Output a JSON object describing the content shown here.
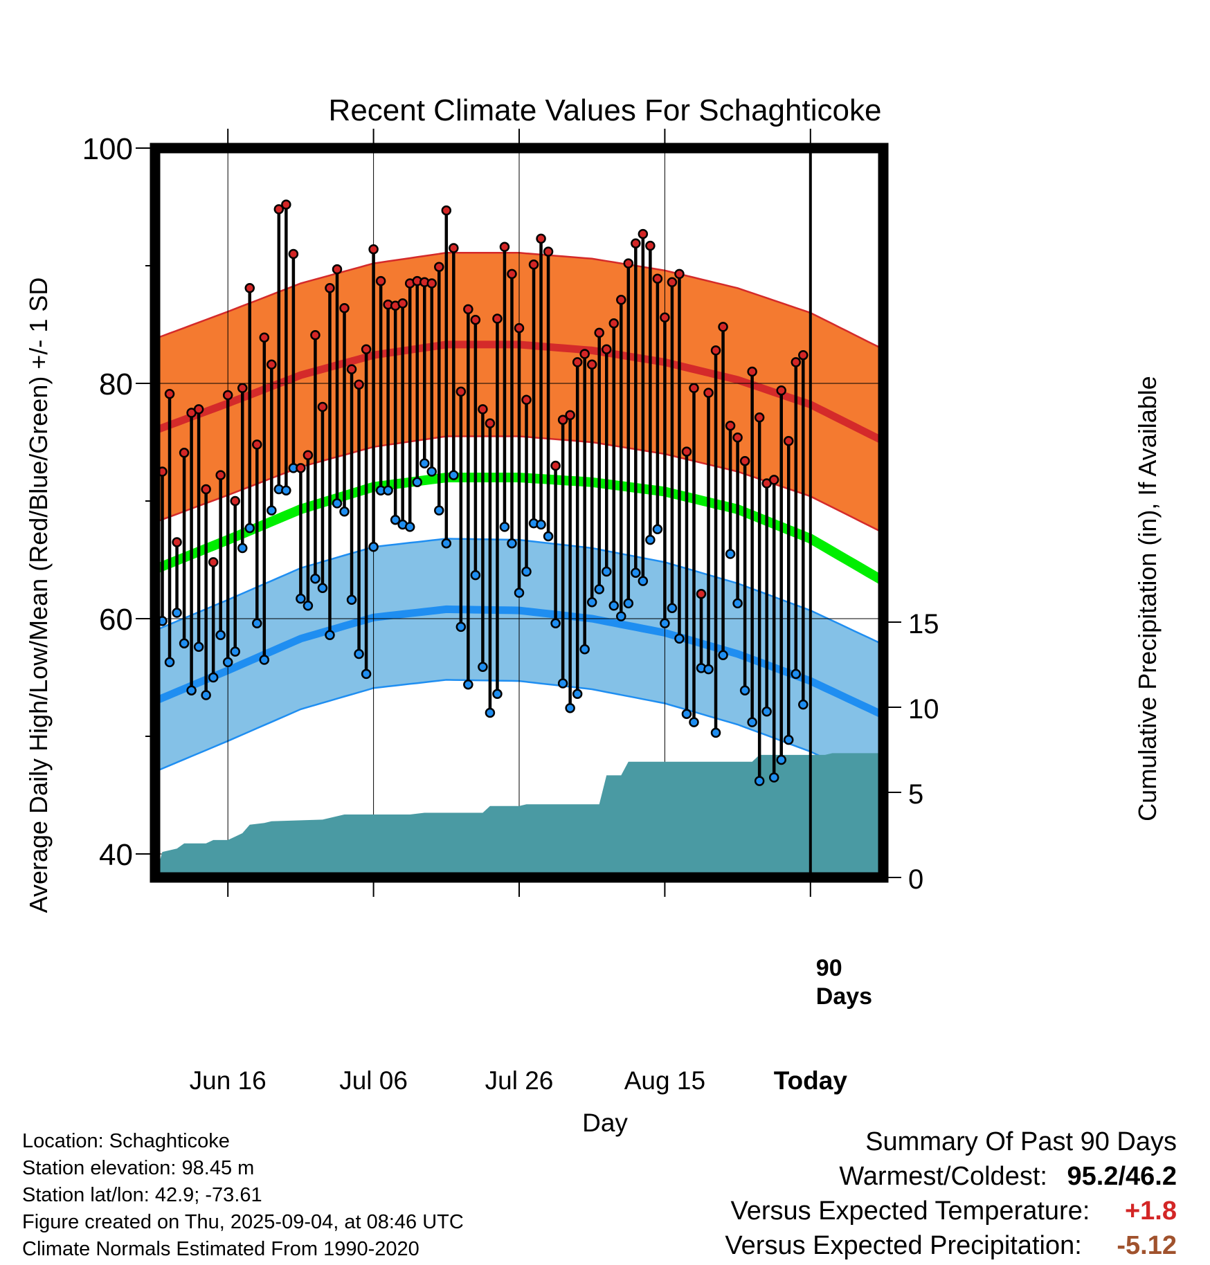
{
  "chart_data": {
    "type": "line",
    "title": "Recent Climate Values For Schaghticoke",
    "xlabel": "Day",
    "ylabel": "Average Daily High/Low/Mean (Red/Blue/Green) +/- 1 SD",
    "y2label": "Cumulative Precipitation (in), If Available",
    "ylim": [
      38,
      100
    ],
    "y2lim": [
      0,
      15
    ],
    "yticks": [
      40,
      60,
      80,
      100
    ],
    "y2ticks": [
      0,
      5,
      10,
      15
    ],
    "xlim": [
      -10,
      90
    ],
    "x_tick_positions": [
      0,
      20,
      40,
      60,
      80
    ],
    "x_tick_labels": [
      "Jun 16",
      "Jul 06",
      "Jul 26",
      "Aug 15",
      "Today"
    ],
    "today_marker_label": [
      "90",
      "Days"
    ],
    "start_date": "2025-06-06",
    "daily_high": [
      78.9,
      72.5,
      79.1,
      66.5,
      74.1,
      77.5,
      77.8,
      71.0,
      64.8,
      72.2,
      79.0,
      70.0,
      79.6,
      88.1,
      74.8,
      83.9,
      81.6,
      94.8,
      95.2,
      91.0,
      72.8,
      73.9,
      84.1,
      78.0,
      88.1,
      89.7,
      86.4,
      81.2,
      79.9,
      82.9,
      91.4,
      88.7,
      86.7,
      86.6,
      86.8,
      88.5,
      88.7,
      88.6,
      88.5,
      89.9,
      94.7,
      91.5,
      79.3,
      86.3,
      85.4,
      77.8,
      76.6,
      85.5,
      91.6,
      89.3,
      84.7,
      78.6,
      90.1,
      92.3,
      91.2,
      73.0,
      76.9,
      77.3,
      81.8,
      82.5,
      81.6,
      84.3,
      82.9,
      85.1,
      87.1,
      90.2,
      91.9,
      92.7,
      91.7,
      88.9,
      85.6,
      88.6,
      89.3,
      74.2,
      79.6,
      62.1,
      79.2,
      82.8,
      84.8,
      76.4,
      75.4,
      73.4,
      81.0,
      77.1,
      71.5,
      71.8,
      79.4,
      75.1,
      81.8,
      82.4
    ],
    "daily_low": [
      64.8,
      59.8,
      56.3,
      60.5,
      57.9,
      53.9,
      57.6,
      53.5,
      55.0,
      58.6,
      56.3,
      57.2,
      66.0,
      67.7,
      59.6,
      56.5,
      69.2,
      71.0,
      70.9,
      72.8,
      61.7,
      61.1,
      63.4,
      62.6,
      58.6,
      69.8,
      69.1,
      61.6,
      57.0,
      55.3,
      66.1,
      70.9,
      70.9,
      68.4,
      68.0,
      67.8,
      71.6,
      73.2,
      72.5,
      69.2,
      66.4,
      72.2,
      59.3,
      54.4,
      63.7,
      55.9,
      52.0,
      53.6,
      67.8,
      66.4,
      62.2,
      64.0,
      68.1,
      68.0,
      67.0,
      59.6,
      54.5,
      52.4,
      53.6,
      57.4,
      61.4,
      62.5,
      64.0,
      61.1,
      60.2,
      61.3,
      63.9,
      63.2,
      66.7,
      67.6,
      59.6,
      60.9,
      58.3,
      51.9,
      51.2,
      55.8,
      55.7,
      50.3,
      56.9,
      65.5,
      61.3,
      53.9,
      51.2,
      46.2,
      52.1,
      46.5,
      48.0,
      49.7,
      55.3,
      52.7
    ],
    "normal_high": [
      {
        "day": -10,
        "value": 76.0
      },
      {
        "day": 0,
        "value": 78.3
      },
      {
        "day": 10,
        "value": 80.7
      },
      {
        "day": 20,
        "value": 82.4
      },
      {
        "day": 30,
        "value": 83.3
      },
      {
        "day": 40,
        "value": 83.3
      },
      {
        "day": 50,
        "value": 82.8
      },
      {
        "day": 60,
        "value": 81.8
      },
      {
        "day": 70,
        "value": 80.3
      },
      {
        "day": 80,
        "value": 78.2
      },
      {
        "day": 90,
        "value": 75.1
      }
    ],
    "normal_high_sd": 7.8,
    "normal_mean": [
      {
        "day": -10,
        "value": 64.2
      },
      {
        "day": 0,
        "value": 66.7
      },
      {
        "day": 10,
        "value": 69.3
      },
      {
        "day": 20,
        "value": 71.2
      },
      {
        "day": 30,
        "value": 72.0
      },
      {
        "day": 40,
        "value": 72.0
      },
      {
        "day": 50,
        "value": 71.6
      },
      {
        "day": 60,
        "value": 70.8
      },
      {
        "day": 70,
        "value": 69.3
      },
      {
        "day": 80,
        "value": 66.8
      },
      {
        "day": 90,
        "value": 63.2
      }
    ],
    "normal_low": [
      {
        "day": -10,
        "value": 53.0
      },
      {
        "day": 0,
        "value": 55.6
      },
      {
        "day": 10,
        "value": 58.3
      },
      {
        "day": 20,
        "value": 60.1
      },
      {
        "day": 30,
        "value": 60.8
      },
      {
        "day": 40,
        "value": 60.7
      },
      {
        "day": 50,
        "value": 60.0
      },
      {
        "day": 60,
        "value": 58.8
      },
      {
        "day": 70,
        "value": 57.0
      },
      {
        "day": 80,
        "value": 54.7
      },
      {
        "day": 90,
        "value": 51.8
      }
    ],
    "normal_low_sd": 6.0,
    "cumulative_precip": [
      {
        "day": -10,
        "value": 0.0
      },
      {
        "day": -9,
        "value": 1.5
      },
      {
        "day": -7,
        "value": 1.7
      },
      {
        "day": -6,
        "value": 2.0
      },
      {
        "day": -3,
        "value": 2.0
      },
      {
        "day": -2,
        "value": 2.2
      },
      {
        "day": 0,
        "value": 2.2
      },
      {
        "day": 1,
        "value": 2.4
      },
      {
        "day": 2,
        "value": 2.6
      },
      {
        "day": 3,
        "value": 3.1
      },
      {
        "day": 5,
        "value": 3.2
      },
      {
        "day": 6,
        "value": 3.3
      },
      {
        "day": 13,
        "value": 3.4
      },
      {
        "day": 16,
        "value": 3.7
      },
      {
        "day": 25,
        "value": 3.7
      },
      {
        "day": 27,
        "value": 3.8
      },
      {
        "day": 35,
        "value": 3.8
      },
      {
        "day": 36,
        "value": 4.2
      },
      {
        "day": 40,
        "value": 4.2
      },
      {
        "day": 41,
        "value": 4.3
      },
      {
        "day": 51,
        "value": 4.3
      },
      {
        "day": 52,
        "value": 6.0
      },
      {
        "day": 54,
        "value": 6.0
      },
      {
        "day": 55,
        "value": 6.8
      },
      {
        "day": 64,
        "value": 6.8
      },
      {
        "day": 70,
        "value": 6.8
      },
      {
        "day": 72,
        "value": 6.8
      },
      {
        "day": 73,
        "value": 7.2
      },
      {
        "day": 82,
        "value": 7.2
      },
      {
        "day": 83,
        "value": 7.3
      },
      {
        "day": 90,
        "value": 7.3
      }
    ],
    "colors": {
      "high_line": "#d42a2a",
      "high_band": "#f47a30",
      "high_dot": "#d32626",
      "low_line": "#1f8ef1",
      "low_band": "#84c1e7",
      "low_dot": "#1f8ef1",
      "mean_line": "#00ee00",
      "precip": "#4a9aa3"
    }
  },
  "footer": {
    "location": "Location: Schaghticoke",
    "elevation": "Station elevation: 98.45 m",
    "latlon": "Station lat/lon: 42.9; -73.61",
    "created": "Figure created on Thu, 2025-09-04, at 08:46 UTC",
    "normals": "Climate Normals Estimated From 1990-2020"
  },
  "summary": {
    "heading": "Summary Of Past 90 Days",
    "warm_cold_label": "Warmest/Coldest:",
    "warm_cold_value": "95.2/46.2",
    "temp_label": "Versus Expected Temperature:",
    "temp_value": "+1.8",
    "temp_color": "#d32626",
    "precip_label": "Versus Expected Precipitation:",
    "precip_value": "-5.12",
    "precip_color": "#a0522d"
  }
}
